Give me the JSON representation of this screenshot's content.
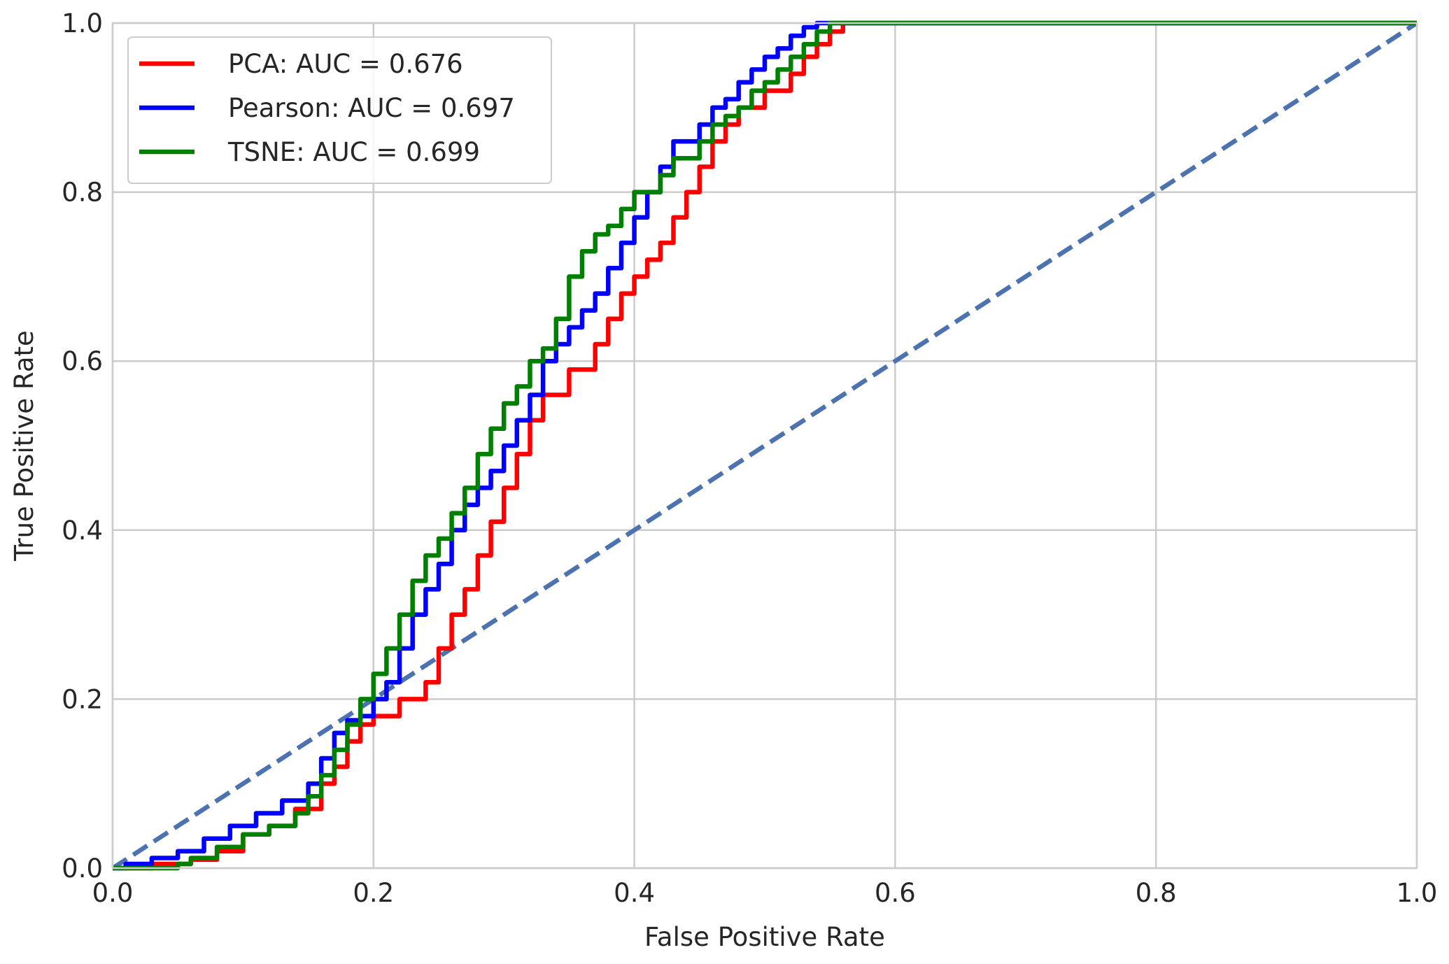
{
  "chart_data": {
    "type": "line",
    "xlabel": "False Positive Rate",
    "ylabel": "True Positive Rate",
    "xlim": [
      0.0,
      1.0
    ],
    "ylim": [
      0.0,
      1.0
    ],
    "xticks": [
      "0.0",
      "0.2",
      "0.4",
      "0.6",
      "0.8",
      "1.0"
    ],
    "yticks": [
      "0.0",
      "0.2",
      "0.4",
      "0.6",
      "0.8",
      "1.0"
    ],
    "grid": true,
    "legend_position": "top-left",
    "series": [
      {
        "name": "PCA: AUC = 0.676",
        "color": "#ff0000",
        "style": "solid",
        "x": [
          0.0,
          0.03,
          0.06,
          0.08,
          0.1,
          0.12,
          0.14,
          0.16,
          0.17,
          0.18,
          0.19,
          0.2,
          0.22,
          0.24,
          0.25,
          0.26,
          0.27,
          0.28,
          0.29,
          0.3,
          0.31,
          0.32,
          0.33,
          0.35,
          0.37,
          0.38,
          0.39,
          0.4,
          0.41,
          0.42,
          0.43,
          0.44,
          0.45,
          0.46,
          0.47,
          0.48,
          0.5,
          0.52,
          0.53,
          0.54,
          0.55,
          0.56,
          0.6,
          0.7,
          0.8,
          0.9,
          1.0
        ],
        "y": [
          0.0,
          0.005,
          0.01,
          0.02,
          0.04,
          0.05,
          0.07,
          0.1,
          0.12,
          0.15,
          0.17,
          0.18,
          0.2,
          0.22,
          0.26,
          0.3,
          0.33,
          0.37,
          0.41,
          0.45,
          0.49,
          0.53,
          0.56,
          0.59,
          0.62,
          0.65,
          0.68,
          0.7,
          0.72,
          0.74,
          0.77,
          0.8,
          0.83,
          0.86,
          0.88,
          0.9,
          0.92,
          0.94,
          0.96,
          0.975,
          0.99,
          1.0,
          1.0,
          1.0,
          1.0,
          1.0,
          1.0
        ]
      },
      {
        "name": "Pearson: AUC = 0.697",
        "color": "#0000ff",
        "style": "solid",
        "x": [
          0.0,
          0.01,
          0.03,
          0.05,
          0.07,
          0.09,
          0.11,
          0.13,
          0.15,
          0.16,
          0.17,
          0.18,
          0.19,
          0.2,
          0.21,
          0.22,
          0.23,
          0.24,
          0.25,
          0.26,
          0.27,
          0.28,
          0.29,
          0.3,
          0.31,
          0.32,
          0.33,
          0.34,
          0.35,
          0.36,
          0.37,
          0.38,
          0.39,
          0.4,
          0.41,
          0.42,
          0.43,
          0.45,
          0.46,
          0.47,
          0.48,
          0.49,
          0.5,
          0.51,
          0.52,
          0.53,
          0.54,
          0.6,
          0.7,
          0.8,
          0.9,
          1.0
        ],
        "y": [
          0.0,
          0.005,
          0.012,
          0.02,
          0.035,
          0.05,
          0.065,
          0.08,
          0.1,
          0.13,
          0.16,
          0.175,
          0.18,
          0.2,
          0.22,
          0.26,
          0.3,
          0.33,
          0.36,
          0.4,
          0.43,
          0.45,
          0.47,
          0.5,
          0.53,
          0.56,
          0.6,
          0.62,
          0.64,
          0.66,
          0.68,
          0.71,
          0.74,
          0.77,
          0.8,
          0.83,
          0.86,
          0.88,
          0.9,
          0.91,
          0.93,
          0.945,
          0.96,
          0.97,
          0.985,
          0.995,
          1.0,
          1.0,
          1.0,
          1.0,
          1.0,
          1.0
        ]
      },
      {
        "name": "TSNE: AUC = 0.699",
        "color": "#008000",
        "style": "solid",
        "x": [
          0.0,
          0.03,
          0.05,
          0.06,
          0.08,
          0.1,
          0.12,
          0.14,
          0.15,
          0.16,
          0.17,
          0.18,
          0.19,
          0.2,
          0.21,
          0.22,
          0.23,
          0.24,
          0.25,
          0.26,
          0.27,
          0.28,
          0.29,
          0.3,
          0.31,
          0.32,
          0.33,
          0.34,
          0.35,
          0.36,
          0.37,
          0.38,
          0.39,
          0.4,
          0.41,
          0.42,
          0.43,
          0.45,
          0.46,
          0.47,
          0.48,
          0.49,
          0.5,
          0.51,
          0.52,
          0.53,
          0.54,
          0.55,
          0.6,
          0.7,
          0.8,
          0.9,
          1.0
        ],
        "y": [
          0.0,
          0.0,
          0.005,
          0.012,
          0.025,
          0.04,
          0.05,
          0.065,
          0.085,
          0.11,
          0.14,
          0.17,
          0.2,
          0.23,
          0.26,
          0.3,
          0.34,
          0.37,
          0.39,
          0.42,
          0.45,
          0.49,
          0.52,
          0.55,
          0.57,
          0.6,
          0.615,
          0.65,
          0.7,
          0.73,
          0.75,
          0.76,
          0.78,
          0.8,
          0.8,
          0.82,
          0.84,
          0.86,
          0.88,
          0.89,
          0.9,
          0.92,
          0.93,
          0.945,
          0.96,
          0.975,
          0.99,
          1.0,
          1.0,
          1.0,
          1.0,
          1.0,
          1.0
        ]
      },
      {
        "color": "#4c72b0",
        "style": "dashed",
        "x": [
          0.0,
          1.0
        ],
        "y": [
          0.0,
          1.0
        ]
      }
    ]
  }
}
